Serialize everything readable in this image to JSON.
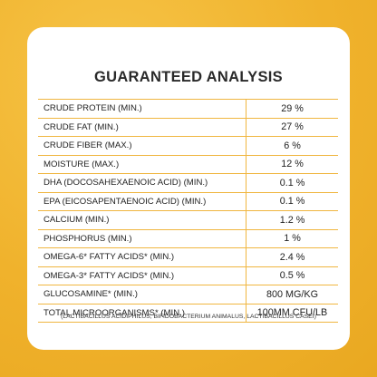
{
  "title": "GUARANTEED ANALYSIS",
  "rows": [
    {
      "label": "CRUDE PROTEIN (MIN.)",
      "value": "29 %"
    },
    {
      "label": "CRUDE FAT (MIN.)",
      "value": "27 %"
    },
    {
      "label": "CRUDE FIBER (MAX.)",
      "value": "6 %"
    },
    {
      "label": "MOISTURE (MAX.)",
      "value": "12 %"
    },
    {
      "label": "DHA (DOCOSAHEXAENOIC ACID) (MIN.)",
      "value": "0.1 %"
    },
    {
      "label": "EPA (EICOSAPENTAENOIC ACID) (MIN.)",
      "value": "0.1 %"
    },
    {
      "label": "CALCIUM (MIN.)",
      "value": "1.2 %"
    },
    {
      "label": "PHOSPHORUS (MIN.)",
      "value": "1 %"
    },
    {
      "label": "OMEGA-6* FATTY ACIDS* (MIN.)",
      "value": "2.4 %"
    },
    {
      "label": "OMEGA-3* FATTY ACIDS* (MIN.)",
      "value": "0.5 %"
    },
    {
      "label": "GLUCOSAMINE* (MIN.)",
      "value": "800 MG/KG"
    },
    {
      "label": "TOTAL MICROORGANISMS* (MIN.)",
      "value": "100MM CFU/LB"
    }
  ],
  "footnote": "(LACTIBACILLUS ACIDIPHILUS, BIFIDOBACTERIUM ANIMALUS, LACTIBACILLUS CASEI)",
  "colors": {
    "background": "#f2b731",
    "border": "#f0b640",
    "card": "#ffffff"
  }
}
